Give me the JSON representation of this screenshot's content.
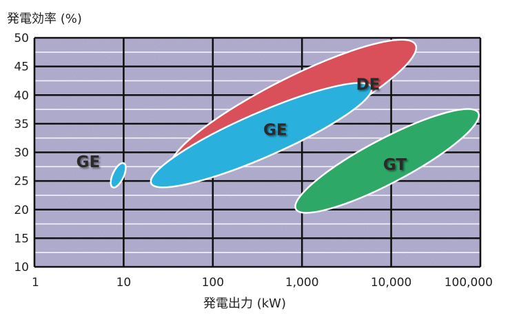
{
  "chart_data": {
    "type": "scatter",
    "title": "",
    "ylabel": "発電効率 (%)",
    "xlabel": "発電出力 (kW)",
    "x_scale": "log",
    "xlim": [
      1,
      100000
    ],
    "ylim": [
      10,
      50
    ],
    "x_ticks": [
      1,
      10,
      100,
      1000,
      10000,
      100000
    ],
    "x_tick_labels": [
      "1",
      "10",
      "100",
      "1,000",
      "10,000",
      "100,000"
    ],
    "y_ticks": [
      10,
      15,
      20,
      25,
      30,
      35,
      40,
      45,
      50
    ],
    "y_tick_labels": [
      "10",
      "15",
      "20",
      "25",
      "30",
      "35",
      "40",
      "45",
      "50"
    ],
    "grid": true,
    "plot_background": "#b4b0d2",
    "regions": [
      {
        "label": "DE",
        "color": "#d9505a",
        "x_range": [
          40,
          22000
        ],
        "y_range": [
          27,
          45
        ],
        "center": [
          800,
          38
        ],
        "label_at": [
          5500,
          41.7
        ]
      },
      {
        "label": "GE",
        "color": "#2ab0dc",
        "x_range": [
          22,
          6500
        ],
        "y_range": [
          27,
          41
        ],
        "center": [
          350,
          33
        ],
        "label_at": [
          500,
          33.8
        ]
      },
      {
        "label": "GE",
        "color": "#2ab0dc",
        "x_range": [
          7.5,
          10
        ],
        "y_range": [
          24.5,
          28
        ],
        "center": [
          8.7,
          26
        ],
        "label_at": [
          4,
          28.2
        ]
      },
      {
        "label": "GT",
        "color": "#2ea867",
        "x_range": [
          900,
          100000
        ],
        "y_range": [
          21,
          35
        ],
        "center": [
          9000,
          28.5
        ],
        "label_at": [
          11000,
          27.7
        ]
      }
    ]
  }
}
